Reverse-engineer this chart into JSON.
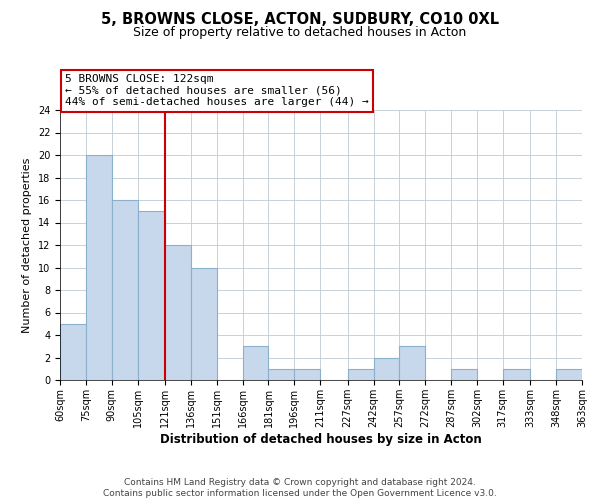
{
  "title": "5, BROWNS CLOSE, ACTON, SUDBURY, CO10 0XL",
  "subtitle": "Size of property relative to detached houses in Acton",
  "xlabel": "Distribution of detached houses by size in Acton",
  "ylabel": "Number of detached properties",
  "bin_edges": [
    60,
    75,
    90,
    105,
    121,
    136,
    151,
    166,
    181,
    196,
    211,
    227,
    242,
    257,
    272,
    287,
    302,
    317,
    333,
    348,
    363
  ],
  "bin_labels": [
    "60sqm",
    "75sqm",
    "90sqm",
    "105sqm",
    "121sqm",
    "136sqm",
    "151sqm",
    "166sqm",
    "181sqm",
    "196sqm",
    "211sqm",
    "227sqm",
    "242sqm",
    "257sqm",
    "272sqm",
    "287sqm",
    "302sqm",
    "317sqm",
    "333sqm",
    "348sqm",
    "363sqm"
  ],
  "counts": [
    5,
    20,
    16,
    15,
    12,
    10,
    0,
    3,
    1,
    1,
    0,
    1,
    2,
    3,
    0,
    1,
    0,
    1,
    0,
    1
  ],
  "bar_color": "#c8d8ec",
  "bar_edgecolor": "#8ab0cc",
  "vline_x": 121,
  "vline_color": "#cc0000",
  "annotation_line1": "5 BROWNS CLOSE: 122sqm",
  "annotation_line2": "← 55% of detached houses are smaller (56)",
  "annotation_line3": "44% of semi-detached houses are larger (44) →",
  "ylim": [
    0,
    24
  ],
  "yticks": [
    0,
    2,
    4,
    6,
    8,
    10,
    12,
    14,
    16,
    18,
    20,
    22,
    24
  ],
  "grid_color": "#c8d0d8",
  "background_color": "#ffffff",
  "footer_line1": "Contains HM Land Registry data © Crown copyright and database right 2024.",
  "footer_line2": "Contains public sector information licensed under the Open Government Licence v3.0.",
  "title_fontsize": 10.5,
  "subtitle_fontsize": 9,
  "xlabel_fontsize": 8.5,
  "ylabel_fontsize": 8,
  "tick_fontsize": 7,
  "annotation_fontsize": 8,
  "footer_fontsize": 6.5
}
